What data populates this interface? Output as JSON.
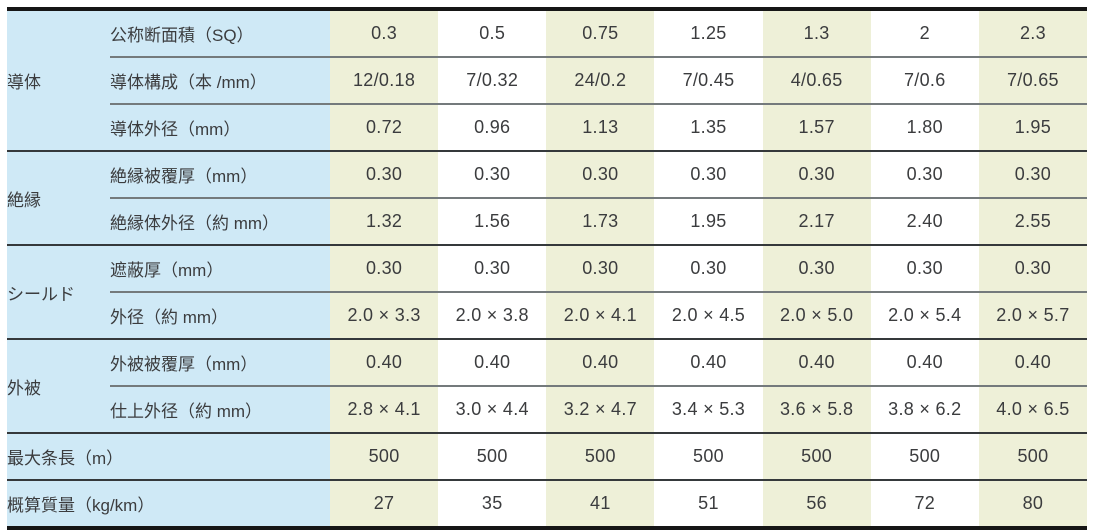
{
  "colors": {
    "label_bg": "#cfe9f6",
    "stripe_green": "#eef0d8",
    "stripe_white": "#ffffff",
    "heavy_border": "#161616",
    "section_line": "#35393b",
    "row_line": "#747a7c",
    "text": "#3b3c3e"
  },
  "table": {
    "sections": [
      {
        "category": "導体",
        "rows": [
          {
            "label": "公称断面積（SQ）",
            "values": [
              "0.3",
              "0.5",
              "0.75",
              "1.25",
              "1.3",
              "2",
              "2.3"
            ]
          },
          {
            "label": "導体構成（本 /mm）",
            "values": [
              "12/0.18",
              "7/0.32",
              "24/0.2",
              "7/0.45",
              "4/0.65",
              "7/0.6",
              "7/0.65"
            ]
          },
          {
            "label": "導体外径（mm）",
            "values": [
              "0.72",
              "0.96",
              "1.13",
              "1.35",
              "1.57",
              "1.80",
              "1.95"
            ]
          }
        ]
      },
      {
        "category": "絶縁",
        "rows": [
          {
            "label": "絶縁被覆厚（mm）",
            "values": [
              "0.30",
              "0.30",
              "0.30",
              "0.30",
              "0.30",
              "0.30",
              "0.30"
            ]
          },
          {
            "label": "絶縁体外径（約 mm）",
            "values": [
              "1.32",
              "1.56",
              "1.73",
              "1.95",
              "2.17",
              "2.40",
              "2.55"
            ]
          }
        ]
      },
      {
        "category": "シールド",
        "rows": [
          {
            "label": "遮蔽厚（mm）",
            "values": [
              "0.30",
              "0.30",
              "0.30",
              "0.30",
              "0.30",
              "0.30",
              "0.30"
            ]
          },
          {
            "label": "外径（約 mm）",
            "values": [
              "2.0 × 3.3",
              "2.0 × 3.8",
              "2.0 × 4.1",
              "2.0 × 4.5",
              "2.0 × 5.0",
              "2.0 × 5.4",
              "2.0 × 5.7"
            ]
          }
        ]
      },
      {
        "category": "外被",
        "rows": [
          {
            "label": "外被被覆厚（mm）",
            "values": [
              "0.40",
              "0.40",
              "0.40",
              "0.40",
              "0.40",
              "0.40",
              "0.40"
            ]
          },
          {
            "label": "仕上外径（約 mm）",
            "values": [
              "2.8 × 4.1",
              "3.0 × 4.4",
              "3.2 × 4.7",
              "3.4 × 5.3",
              "3.6 × 5.8",
              "3.8 × 6.2",
              "4.0 × 6.5"
            ]
          }
        ]
      },
      {
        "full_label": "最大条長（m）",
        "rows": [
          {
            "values": [
              "500",
              "500",
              "500",
              "500",
              "500",
              "500",
              "500"
            ]
          }
        ]
      },
      {
        "full_label": "概算質量（kg/km）",
        "rows": [
          {
            "values": [
              "27",
              "35",
              "41",
              "51",
              "56",
              "72",
              "80"
            ]
          }
        ]
      }
    ]
  }
}
